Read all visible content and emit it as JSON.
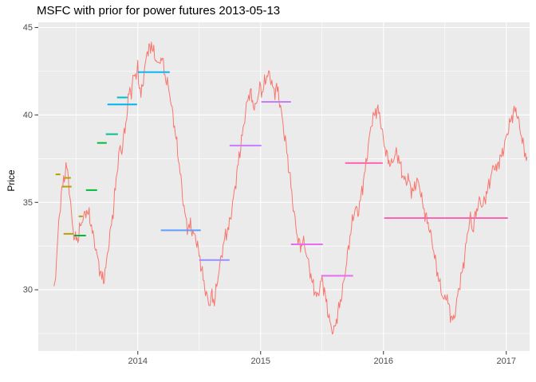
{
  "chart": {
    "title": "MSFC with prior for power futures 2013-05-13",
    "ylabel": "Price"
  },
  "chart_data": {
    "type": "line",
    "title": "MSFC with prior for power futures 2013-05-13",
    "xlabel": "",
    "ylabel": "Price",
    "xlim": [
      2013.19,
      2017.19
    ],
    "ylim": [
      26.5,
      45.3
    ],
    "x_ticks": [
      2014,
      2015,
      2016,
      2017
    ],
    "x_tick_labels": [
      "2014",
      "2015",
      "2016",
      "2017"
    ],
    "y_ticks": [
      30,
      35,
      40,
      45
    ],
    "y_tick_labels": [
      "30",
      "35",
      "40",
      "45"
    ],
    "x_minor_ticks": [
      2013.5,
      2014.5,
      2015.5,
      2016.5
    ],
    "y_minor_ticks": [
      27.5,
      32.5,
      37.5,
      42.5
    ],
    "panel_background": "#EBEBEB",
    "grid_color": "#FFFFFF",
    "tick_mark_color": "#333333",
    "tick_label_color": "#4D4D4D",
    "grid": "on",
    "legend": "none",
    "series": [
      {
        "name": "MSFC price",
        "type": "line",
        "color": "#F8766D",
        "points": [
          [
            2013.318,
            30.0
          ],
          [
            2013.338,
            31.8
          ],
          [
            2013.357,
            34.0
          ],
          [
            2013.377,
            35.6
          ],
          [
            2013.396,
            36.4
          ],
          [
            2013.409,
            36.9
          ],
          [
            2013.422,
            37.2
          ],
          [
            2013.435,
            36.6
          ],
          [
            2013.448,
            35.4
          ],
          [
            2013.461,
            34.4
          ],
          [
            2013.474,
            33.6
          ],
          [
            2013.487,
            33.0
          ],
          [
            2013.5,
            33.2
          ],
          [
            2013.513,
            33.0
          ],
          [
            2013.526,
            33.6
          ],
          [
            2013.545,
            34.1
          ],
          [
            2013.565,
            34.4
          ],
          [
            2013.584,
            34.7
          ],
          [
            2013.604,
            34.4
          ],
          [
            2013.623,
            33.8
          ],
          [
            2013.643,
            33.0
          ],
          [
            2013.662,
            32.4
          ],
          [
            2013.682,
            31.6
          ],
          [
            2013.701,
            31.0
          ],
          [
            2013.721,
            30.7
          ],
          [
            2013.74,
            31.4
          ],
          [
            2013.76,
            32.6
          ],
          [
            2013.779,
            33.6
          ],
          [
            2013.799,
            34.6
          ],
          [
            2013.818,
            36.0
          ],
          [
            2013.838,
            37.4
          ],
          [
            2013.857,
            38.4
          ],
          [
            2013.87,
            38.0
          ],
          [
            2013.883,
            38.8
          ],
          [
            2013.896,
            39.4
          ],
          [
            2013.909,
            40.0
          ],
          [
            2013.922,
            40.9
          ],
          [
            2013.935,
            41.9
          ],
          [
            2013.948,
            41.2
          ],
          [
            2013.961,
            42.2
          ],
          [
            2013.974,
            42.7
          ],
          [
            2013.987,
            42.2
          ],
          [
            2014.0,
            42.9
          ],
          [
            2014.013,
            41.8
          ],
          [
            2014.026,
            41.3
          ],
          [
            2014.039,
            41.8
          ],
          [
            2014.052,
            42.6
          ],
          [
            2014.065,
            43.2
          ],
          [
            2014.078,
            43.8
          ],
          [
            2014.091,
            44.1
          ],
          [
            2014.104,
            43.8
          ],
          [
            2014.117,
            44.25
          ],
          [
            2014.13,
            43.8
          ],
          [
            2014.143,
            43.1
          ],
          [
            2014.156,
            43.5
          ],
          [
            2014.169,
            42.9
          ],
          [
            2014.182,
            43.2
          ],
          [
            2014.195,
            43.6
          ],
          [
            2014.208,
            43.0
          ],
          [
            2014.221,
            42.4
          ],
          [
            2014.234,
            42.1
          ],
          [
            2014.247,
            41.8
          ],
          [
            2014.26,
            41.4
          ],
          [
            2014.273,
            40.7
          ],
          [
            2014.286,
            40.1
          ],
          [
            2014.299,
            39.5
          ],
          [
            2014.312,
            38.8
          ],
          [
            2014.331,
            37.7
          ],
          [
            2014.351,
            36.5
          ],
          [
            2014.37,
            35.2
          ],
          [
            2014.39,
            34.2
          ],
          [
            2014.409,
            33.6
          ],
          [
            2014.429,
            33.9
          ],
          [
            2014.448,
            33.4
          ],
          [
            2014.468,
            33.2
          ],
          [
            2014.487,
            32.7
          ],
          [
            2014.506,
            31.9
          ],
          [
            2014.526,
            31.1
          ],
          [
            2014.545,
            30.3
          ],
          [
            2014.565,
            29.7
          ],
          [
            2014.584,
            29.3
          ],
          [
            2014.604,
            29.9
          ],
          [
            2014.623,
            29.4
          ],
          [
            2014.643,
            30.4
          ],
          [
            2014.662,
            31.3
          ],
          [
            2014.682,
            32.1
          ],
          [
            2014.701,
            32.9
          ],
          [
            2014.721,
            33.4
          ],
          [
            2014.74,
            33.7
          ],
          [
            2014.76,
            34.5
          ],
          [
            2014.779,
            35.4
          ],
          [
            2014.799,
            36.4
          ],
          [
            2014.818,
            37.4
          ],
          [
            2014.838,
            38.4
          ],
          [
            2014.857,
            39.3
          ],
          [
            2014.877,
            40.3
          ],
          [
            2014.896,
            41.1
          ],
          [
            2014.916,
            41.5
          ],
          [
            2014.935,
            40.9
          ],
          [
            2014.955,
            40.5
          ],
          [
            2014.974,
            41.1
          ],
          [
            2014.994,
            41.8
          ],
          [
            2015.013,
            41.4
          ],
          [
            2015.032,
            42.0
          ],
          [
            2015.052,
            42.4
          ],
          [
            2015.071,
            42.5
          ],
          [
            2015.091,
            42.0
          ],
          [
            2015.11,
            41.4
          ],
          [
            2015.13,
            41.8
          ],
          [
            2015.149,
            41.2
          ],
          [
            2015.169,
            40.3
          ],
          [
            2015.188,
            39.3
          ],
          [
            2015.208,
            38.4
          ],
          [
            2015.227,
            37.3
          ],
          [
            2015.247,
            36.1
          ],
          [
            2015.266,
            34.9
          ],
          [
            2015.286,
            33.8
          ],
          [
            2015.305,
            33.0
          ],
          [
            2015.325,
            32.6
          ],
          [
            2015.344,
            33.0
          ],
          [
            2015.364,
            32.5
          ],
          [
            2015.383,
            31.9
          ],
          [
            2015.403,
            31.2
          ],
          [
            2015.422,
            30.5
          ],
          [
            2015.442,
            30.1
          ],
          [
            2015.461,
            29.7
          ],
          [
            2015.481,
            30.3
          ],
          [
            2015.5,
            30.8
          ],
          [
            2015.519,
            30.1
          ],
          [
            2015.539,
            29.3
          ],
          [
            2015.558,
            28.5
          ],
          [
            2015.578,
            27.9
          ],
          [
            2015.597,
            27.8
          ],
          [
            2015.617,
            28.4
          ],
          [
            2015.636,
            29.1
          ],
          [
            2015.656,
            29.7
          ],
          [
            2015.675,
            30.5
          ],
          [
            2015.695,
            31.5
          ],
          [
            2015.714,
            32.5
          ],
          [
            2015.734,
            33.5
          ],
          [
            2015.753,
            34.3
          ],
          [
            2015.773,
            34.9
          ],
          [
            2015.792,
            34.5
          ],
          [
            2015.812,
            35.3
          ],
          [
            2015.831,
            36.1
          ],
          [
            2015.851,
            37.0
          ],
          [
            2015.87,
            38.0
          ],
          [
            2015.89,
            39.1
          ],
          [
            2015.909,
            39.9
          ],
          [
            2015.929,
            40.2
          ],
          [
            2015.948,
            40.5
          ],
          [
            2015.968,
            40.2
          ],
          [
            2015.987,
            39.3
          ],
          [
            2016.006,
            38.5
          ],
          [
            2016.026,
            37.9
          ],
          [
            2016.045,
            37.5
          ],
          [
            2016.065,
            37.3
          ],
          [
            2016.084,
            37.7
          ],
          [
            2016.104,
            38.0
          ],
          [
            2016.123,
            37.7
          ],
          [
            2016.143,
            37.1
          ],
          [
            2016.162,
            36.6
          ],
          [
            2016.182,
            36.3
          ],
          [
            2016.201,
            36.6
          ],
          [
            2016.221,
            36.0
          ],
          [
            2016.24,
            35.7
          ],
          [
            2016.26,
            36.2
          ],
          [
            2016.279,
            36.4
          ],
          [
            2016.299,
            35.9
          ],
          [
            2016.318,
            35.1
          ],
          [
            2016.338,
            34.5
          ],
          [
            2016.357,
            34.1
          ],
          [
            2016.377,
            33.6
          ],
          [
            2016.396,
            32.9
          ],
          [
            2016.416,
            32.1
          ],
          [
            2016.435,
            31.3
          ],
          [
            2016.455,
            30.6
          ],
          [
            2016.474,
            30.0
          ],
          [
            2016.494,
            29.5
          ],
          [
            2016.513,
            29.9
          ],
          [
            2016.532,
            29.2
          ],
          [
            2016.552,
            28.6
          ],
          [
            2016.571,
            28.4
          ],
          [
            2016.591,
            29.2
          ],
          [
            2016.61,
            30.1
          ],
          [
            2016.63,
            30.8
          ],
          [
            2016.649,
            31.5
          ],
          [
            2016.669,
            32.5
          ],
          [
            2016.688,
            33.6
          ],
          [
            2016.708,
            34.3
          ],
          [
            2016.727,
            33.5
          ],
          [
            2016.747,
            34.4
          ],
          [
            2016.766,
            34.9
          ],
          [
            2016.786,
            35.3
          ],
          [
            2016.805,
            34.9
          ],
          [
            2016.825,
            35.3
          ],
          [
            2016.844,
            35.8
          ],
          [
            2016.864,
            36.3
          ],
          [
            2016.883,
            36.9
          ],
          [
            2016.903,
            37.3
          ],
          [
            2016.922,
            37.0
          ],
          [
            2016.942,
            37.6
          ],
          [
            2016.961,
            37.8
          ],
          [
            2016.981,
            38.3
          ],
          [
            2017.0,
            38.9
          ],
          [
            2017.019,
            39.4
          ],
          [
            2017.039,
            39.9
          ],
          [
            2017.058,
            40.3
          ],
          [
            2017.078,
            40.5
          ],
          [
            2017.097,
            39.9
          ],
          [
            2017.117,
            39.2
          ],
          [
            2017.136,
            38.5
          ],
          [
            2017.156,
            37.9
          ],
          [
            2017.169,
            37.6
          ]
        ]
      }
    ],
    "segments": [
      {
        "x0": 2013.331,
        "x1": 2013.37,
        "y": 36.6,
        "color": "#B79F00"
      },
      {
        "x0": 2013.403,
        "x1": 2013.455,
        "y": 36.4,
        "color": "#B79F00"
      },
      {
        "x0": 2013.383,
        "x1": 2013.461,
        "y": 35.9,
        "color": "#B79F00"
      },
      {
        "x0": 2013.396,
        "x1": 2013.474,
        "y": 33.2,
        "color": "#B79F00"
      },
      {
        "x0": 2013.519,
        "x1": 2013.552,
        "y": 34.2,
        "color": "#B79F00"
      },
      {
        "x0": 2013.481,
        "x1": 2013.578,
        "y": 33.1,
        "color": "#00BA38"
      },
      {
        "x0": 2013.578,
        "x1": 2013.669,
        "y": 35.7,
        "color": "#00BA38"
      },
      {
        "x0": 2013.669,
        "x1": 2013.747,
        "y": 38.4,
        "color": "#00BA38"
      },
      {
        "x0": 2013.74,
        "x1": 2013.838,
        "y": 38.9,
        "color": "#00C08B"
      },
      {
        "x0": 2013.831,
        "x1": 2013.916,
        "y": 41.0,
        "color": "#00BFC4"
      },
      {
        "x0": 2013.753,
        "x1": 2013.994,
        "y": 40.6,
        "color": "#00B4F0"
      },
      {
        "x0": 2014.0,
        "x1": 2014.26,
        "y": 42.45,
        "color": "#00B4F0"
      },
      {
        "x0": 2014.188,
        "x1": 2014.513,
        "y": 33.4,
        "color": "#619CFF"
      },
      {
        "x0": 2014.5,
        "x1": 2014.747,
        "y": 31.7,
        "color": "#9590FF"
      },
      {
        "x0": 2014.747,
        "x1": 2015.006,
        "y": 38.25,
        "color": "#C77CFF"
      },
      {
        "x0": 2015.006,
        "x1": 2015.247,
        "y": 40.75,
        "color": "#C77CFF"
      },
      {
        "x0": 2015.247,
        "x1": 2015.506,
        "y": 32.6,
        "color": "#E76BF3"
      },
      {
        "x0": 2015.494,
        "x1": 2015.753,
        "y": 30.8,
        "color": "#E76BF3"
      },
      {
        "x0": 2015.688,
        "x1": 2015.994,
        "y": 37.25,
        "color": "#FF64B0"
      },
      {
        "x0": 2016.006,
        "x1": 2017.013,
        "y": 34.1,
        "color": "#FF64B0"
      }
    ]
  }
}
